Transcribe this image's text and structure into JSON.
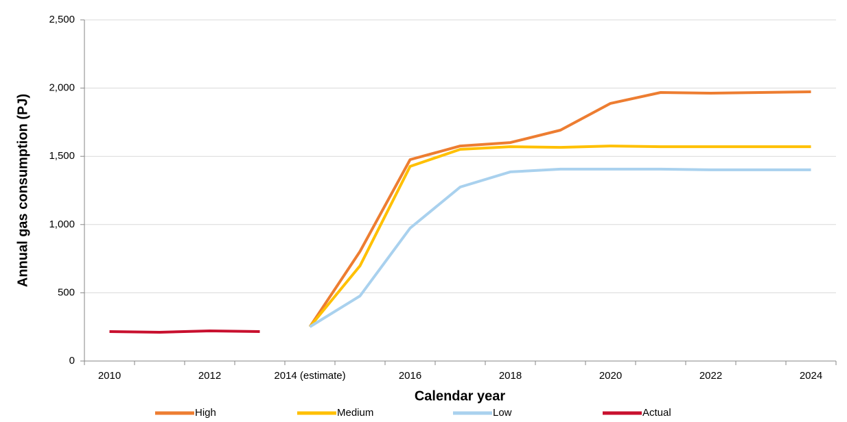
{
  "chart_data": {
    "type": "line",
    "x_label": "Calendar year",
    "y_label": "Annual gas consumption (PJ)",
    "categories": [
      "2010",
      null,
      "2012",
      null,
      "2014 (estimate)",
      null,
      "2016",
      null,
      "2018",
      null,
      "2020",
      null,
      "2022",
      null,
      "2024"
    ],
    "series": [
      {
        "name": "High",
        "color": "#ed7d31",
        "values": [
          null,
          null,
          null,
          null,
          251,
          803,
          1476,
          1576,
          1601,
          1692,
          1888,
          1968,
          1963,
          1968,
          1973
        ]
      },
      {
        "name": "Medium",
        "color": "#ffc000",
        "values": [
          null,
          null,
          null,
          null,
          251,
          698,
          1426,
          1551,
          1571,
          1566,
          1576,
          1571,
          1571,
          1571,
          1571
        ]
      },
      {
        "name": "Low",
        "color": "#a9d1ee",
        "values": [
          null,
          null,
          null,
          null,
          251,
          477,
          974,
          1275,
          1386,
          1406,
          1406,
          1406,
          1401,
          1401,
          1401
        ]
      },
      {
        "name": "Actual",
        "color": "#c8102e",
        "values": [
          216,
          211,
          221,
          216,
          null,
          null,
          null,
          null,
          null,
          null,
          null,
          null,
          null,
          null,
          null
        ]
      }
    ],
    "ylim": [
      0,
      2500
    ],
    "yticks": [
      0,
      500,
      {
        "value": 1000,
        "label": "1,000"
      },
      {
        "value": 1500,
        "label": "1,500"
      },
      {
        "value": 2000,
        "label": "2,000"
      },
      {
        "value": 2500,
        "label": "2,500"
      }
    ],
    "grid": true,
    "legend": "bottom"
  }
}
